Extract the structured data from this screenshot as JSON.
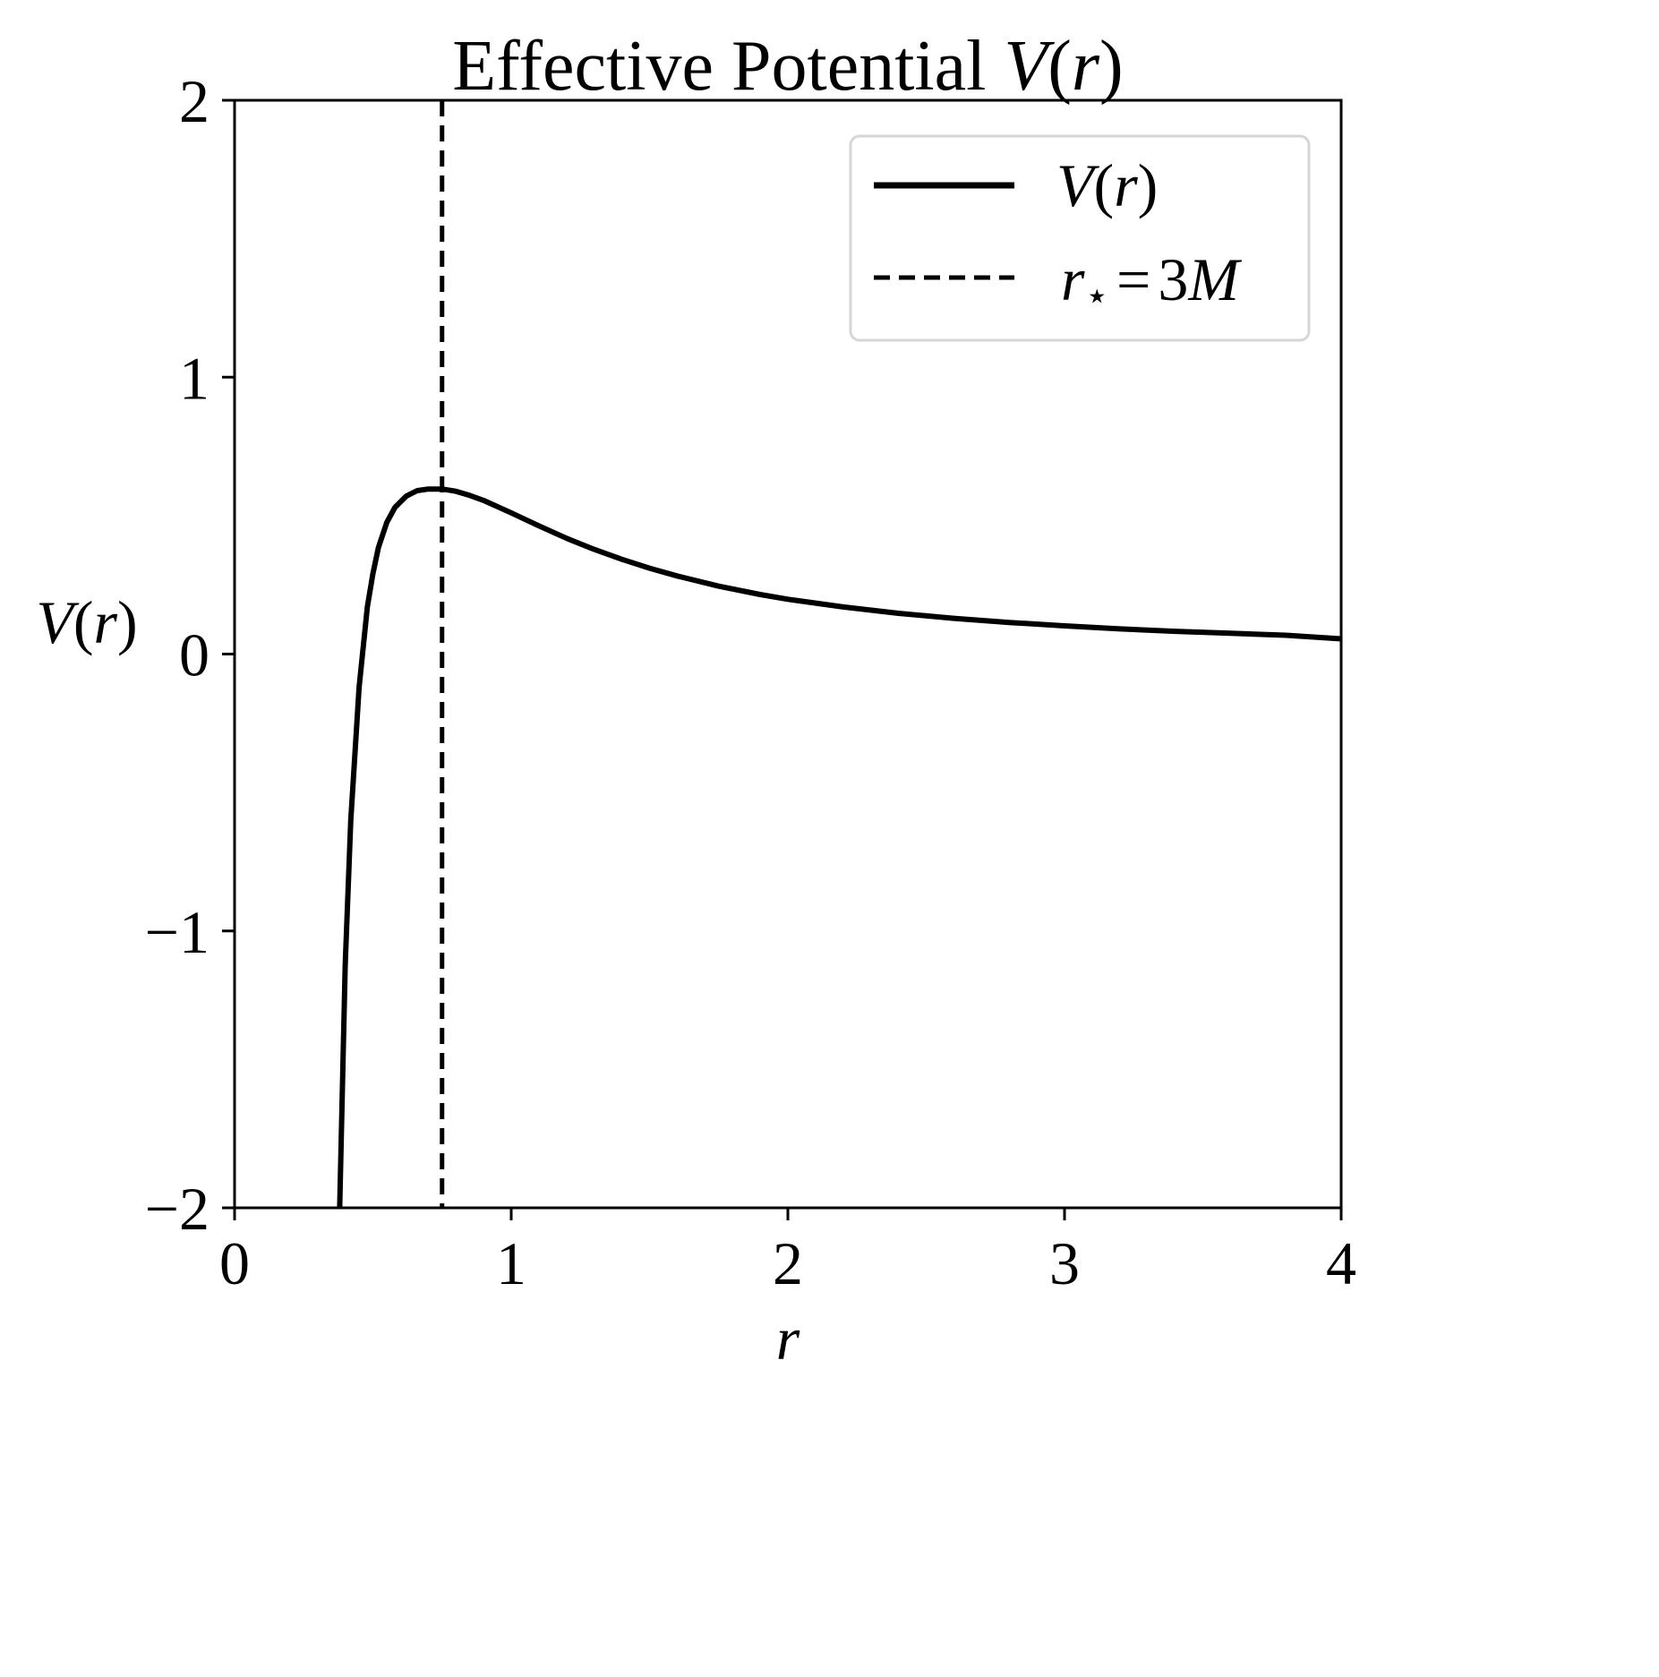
{
  "chart_data": {
    "type": "line",
    "title": "Effective Potential V(r)",
    "title_parts": {
      "text": "Effective Potential ",
      "func": "V",
      "open": "(",
      "var": "r",
      "close": ")"
    },
    "xlabel": "r",
    "ylabel": "V(r)",
    "ylabel_parts": {
      "func": "V",
      "open": "(",
      "var": "r",
      "close": ")"
    },
    "xlim": [
      0,
      4
    ],
    "ylim": [
      -2,
      2
    ],
    "xticks": [
      0,
      1,
      2,
      3,
      4
    ],
    "xtick_labels": [
      "0",
      "1",
      "2",
      "3",
      "4"
    ],
    "yticks": [
      -2,
      -1,
      0,
      1,
      2
    ],
    "ytick_labels": [
      "−2",
      "−1",
      "0",
      "1",
      "2"
    ],
    "grid": false,
    "legend_position": "top-right",
    "series": [
      {
        "name": "V(r)",
        "style": "solid",
        "color": "#000000",
        "x": [
          0.38,
          0.4,
          0.42,
          0.45,
          0.48,
          0.5,
          0.52,
          0.55,
          0.58,
          0.62,
          0.66,
          0.7,
          0.75,
          0.8,
          0.85,
          0.9,
          1.0,
          1.1,
          1.2,
          1.3,
          1.4,
          1.5,
          1.6,
          1.75,
          1.9,
          2.0,
          2.2,
          2.4,
          2.6,
          2.8,
          3.0,
          3.2,
          3.4,
          3.6,
          3.8,
          4.0
        ],
        "y": [
          -2.0,
          -1.12,
          -0.6,
          -0.12,
          0.17,
          0.29,
          0.385,
          0.475,
          0.53,
          0.57,
          0.59,
          0.596,
          0.596,
          0.588,
          0.573,
          0.555,
          0.51,
          0.463,
          0.418,
          0.378,
          0.342,
          0.31,
          0.282,
          0.245,
          0.215,
          0.198,
          0.17,
          0.147,
          0.129,
          0.114,
          0.102,
          0.091,
          0.082,
          0.075,
          0.068,
          0.055
        ]
      }
    ],
    "reference_line": {
      "name": "r⋆ = 3M",
      "style": "dashed",
      "color": "#000000",
      "x": 0.75
    },
    "legend_entries": [
      {
        "func": "V",
        "open": "(",
        "var": "r",
        "close": ")"
      },
      {
        "var": "r",
        "sub": "⋆",
        "eq": "=",
        "num": "3",
        "mass": "M"
      }
    ]
  }
}
